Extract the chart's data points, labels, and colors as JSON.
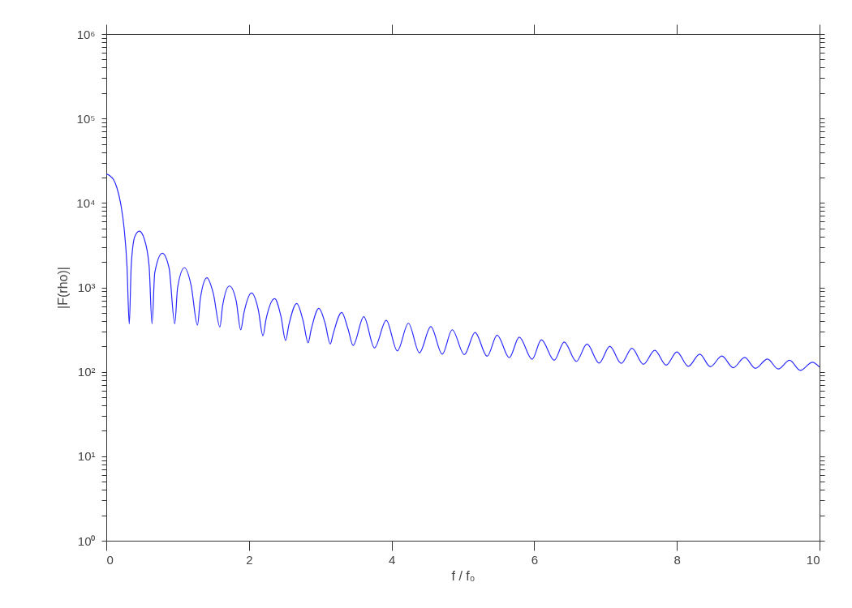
{
  "chart_data": {
    "type": "line",
    "xlabel": "f / f₀",
    "ylabel": "|F(rho)|",
    "log": "y",
    "grid": false,
    "marker": "none",
    "line_style": "solid",
    "xlim": [
      0,
      10
    ],
    "xticks": [
      0,
      2,
      4,
      6,
      8,
      10
    ],
    "ylim": [
      1,
      1000000
    ],
    "yticks": [
      {
        "value": 1,
        "label": "10⁰"
      },
      {
        "value": 2,
        "label": null
      },
      {
        "value": 3,
        "label": null
      },
      {
        "value": 4,
        "label": null
      },
      {
        "value": 5,
        "label": null
      },
      {
        "value": 6,
        "label": null
      },
      {
        "value": 7,
        "label": null
      },
      {
        "value": 8,
        "label": null
      },
      {
        "value": 9,
        "label": null
      },
      {
        "value": 10,
        "label": "10¹"
      },
      {
        "value": 20,
        "label": null
      },
      {
        "value": 30,
        "label": null
      },
      {
        "value": 40,
        "label": null
      },
      {
        "value": 50,
        "label": null
      },
      {
        "value": 60,
        "label": null
      },
      {
        "value": 70,
        "label": null
      },
      {
        "value": 80,
        "label": null
      },
      {
        "value": 90,
        "label": null
      },
      {
        "value": 100,
        "label": "10²"
      },
      {
        "value": 200,
        "label": null
      },
      {
        "value": 300,
        "label": null
      },
      {
        "value": 400,
        "label": null
      },
      {
        "value": 500,
        "label": null
      },
      {
        "value": 600,
        "label": null
      },
      {
        "value": 700,
        "label": null
      },
      {
        "value": 800,
        "label": null
      },
      {
        "value": 900,
        "label": null
      },
      {
        "value": 1000,
        "label": "10³"
      },
      {
        "value": 2000,
        "label": null
      },
      {
        "value": 3000,
        "label": null
      },
      {
        "value": 4000,
        "label": null
      },
      {
        "value": 5000,
        "label": null
      },
      {
        "value": 6000,
        "label": null
      },
      {
        "value": 7000,
        "label": null
      },
      {
        "value": 8000,
        "label": null
      },
      {
        "value": 9000,
        "label": null
      },
      {
        "value": 10000,
        "label": "10⁴"
      },
      {
        "value": 20000,
        "label": null
      },
      {
        "value": 30000,
        "label": null
      },
      {
        "value": 40000,
        "label": null
      },
      {
        "value": 50000,
        "label": null
      },
      {
        "value": 60000,
        "label": null
      },
      {
        "value": 70000,
        "label": null
      },
      {
        "value": 80000,
        "label": null
      },
      {
        "value": 90000,
        "label": null
      },
      {
        "value": 100000,
        "label": "10⁵"
      },
      {
        "value": 200000,
        "label": null
      },
      {
        "value": 300000,
        "label": null
      },
      {
        "value": 400000,
        "label": null
      },
      {
        "value": 500000,
        "label": null
      },
      {
        "value": 600000,
        "label": null
      },
      {
        "value": 700000,
        "label": null
      },
      {
        "value": 800000,
        "label": null
      },
      {
        "value": 900000,
        "label": null
      },
      {
        "value": 1000000,
        "label": "10⁶"
      }
    ],
    "series": [
      {
        "color": "#2a2aff",
        "x": [
          0,
          0.05,
          0.1,
          0.15,
          0.2,
          0.25,
          0.29,
          0.322,
          0.35,
          0.4,
          0.463,
          0.53,
          0.6,
          0.641,
          0.68,
          0.785,
          0.88,
          0.96,
          1.0,
          1.096,
          1.19,
          1.278,
          1.32,
          1.411,
          1.5,
          1.593,
          1.63,
          1.726,
          1.82,
          1.885,
          1.93,
          2.036,
          2.13,
          2.196,
          2.24,
          2.36,
          2.45,
          2.514,
          2.56,
          2.67,
          2.76,
          2.83,
          2.87,
          2.98,
          3.07,
          3.14,
          3.18,
          3.3,
          3.39,
          3.46,
          3.61,
          3.76,
          3.925,
          4.08,
          4.236,
          4.39,
          4.55,
          4.71,
          4.85,
          5.02,
          5.17,
          5.34,
          5.48,
          5.65,
          5.79,
          5.97,
          6.1,
          6.28,
          6.42,
          6.59,
          6.74,
          6.91,
          7.06,
          7.22,
          7.37,
          7.53,
          7.69,
          7.85,
          8.0,
          8.16,
          8.32,
          8.47,
          8.63,
          8.79,
          8.95,
          9.1,
          9.27,
          9.42,
          9.58,
          9.73,
          9.9,
          10
        ],
        "values": [
          22000,
          21000,
          19000,
          15000,
          10000,
          5000,
          1800,
          368,
          1850,
          4000,
          4630,
          3800,
          1800,
          371,
          1500,
          2540,
          1700,
          371,
          1000,
          1710,
          1050,
          357,
          750,
          1300,
          850,
          340,
          600,
          1040,
          700,
          315,
          500,
          859,
          550,
          268,
          420,
          736,
          450,
          235,
          360,
          644,
          400,
          221,
          310,
          564,
          370,
          213,
          280,
          505,
          320,
          205,
          449,
          192,
          408,
          177,
          376,
          168,
          344,
          162,
          315,
          160,
          293,
          153,
          272,
          147,
          258,
          141,
          240,
          137,
          226,
          133,
          213,
          127,
          201,
          126,
          190,
          123,
          180,
          120,
          172,
          116,
          162,
          115,
          154,
          112,
          148,
          110,
          142,
          108,
          137,
          104,
          130,
          114
        ]
      }
    ]
  }
}
